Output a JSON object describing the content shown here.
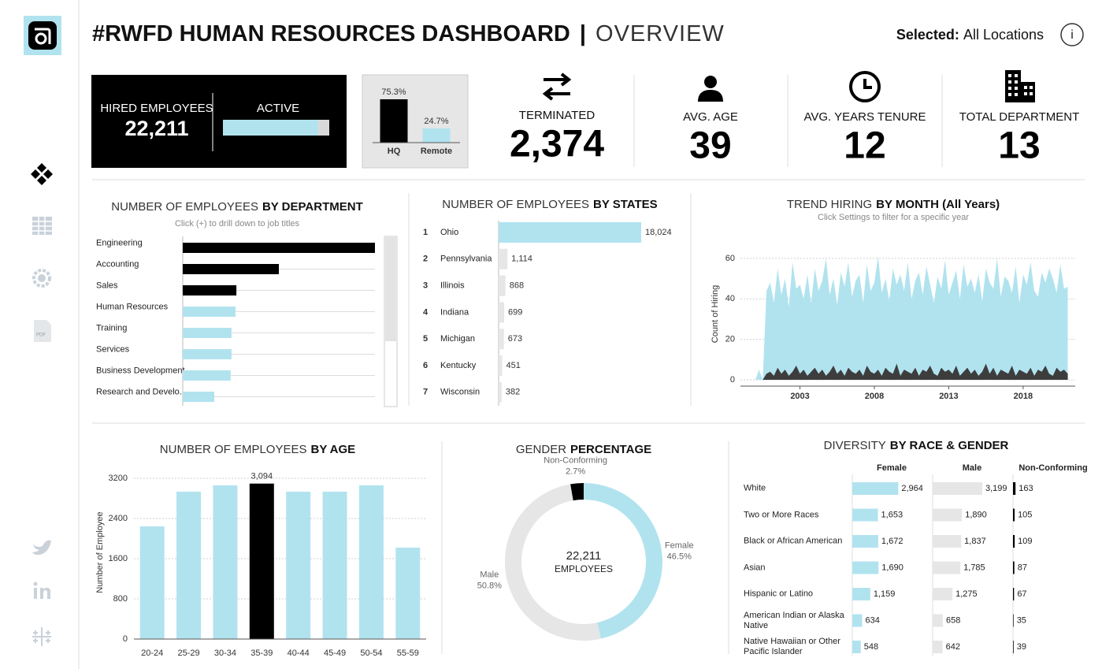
{
  "sidebar": {
    "pdf_icon": "PDF"
  },
  "header": {
    "title": "#RWFD HUMAN RESOURCES DASHBOARD",
    "separator": "|",
    "subtitle": "OVERVIEW",
    "filter_label": "Selected:",
    "filter_value": "All Locations",
    "info": "i"
  },
  "kpis": {
    "hired": {
      "label": "HIRED EMPLOYEES",
      "value": "22,211"
    },
    "active": {
      "label": "ACTIVE",
      "value": 89.3,
      "xlim": [
        0,
        100
      ]
    },
    "terminated": {
      "label": "TERMINATED",
      "value": "2,374"
    },
    "avg_age": {
      "label": "AVG. AGE",
      "value": 39
    },
    "avg_tenure": {
      "label": "AVG. YEARS TENURE",
      "value": 12
    },
    "total_department": {
      "label": "TOTAL DEPARTMENT",
      "value": 13
    }
  },
  "chart_data": [
    {
      "type": "bar",
      "orientation": "vertical",
      "categories": [
        "HQ",
        "Remote"
      ],
      "values": [
        75.3,
        24.7
      ],
      "value_labels": [
        "75.3%",
        "24.7%"
      ],
      "colors": [
        "#000000",
        "#b1e3ef"
      ]
    },
    {
      "type": "bar",
      "orientation": "horizontal",
      "title": "NUMBER OF EMPLOYEES",
      "title_emphasis": "BY DEPARTMENT",
      "subtitle": "Click (+) to drill down to job titles",
      "categories": [
        "Engineering",
        "Accounting",
        "Sales",
        "Human Resources",
        "Training",
        "Services",
        "Business Development",
        "Research and Develo.."
      ],
      "values": [
        6700,
        3350,
        1870,
        1840,
        1700,
        1700,
        1670,
        1100
      ],
      "colors": [
        "#000000",
        "#000000",
        "#000000",
        "#b1e3ef",
        "#b1e3ef",
        "#b1e3ef",
        "#b1e3ef",
        "#b1e3ef"
      ]
    },
    {
      "type": "bar",
      "orientation": "horizontal",
      "title": "NUMBER OF EMPLOYEES",
      "title_emphasis": "BY STATES",
      "ranks": [
        1,
        2,
        3,
        4,
        5,
        6,
        7
      ],
      "categories": [
        "Ohio",
        "Pennsylvania",
        "Illinois",
        "Indiana",
        "Michigan",
        "Kentucky",
        "Wisconsin"
      ],
      "values": [
        18024,
        1114,
        868,
        699,
        673,
        451,
        382
      ],
      "value_labels": [
        "18,024",
        "1,114",
        "868",
        "699",
        "673",
        "451",
        "382"
      ],
      "colors": [
        "#b1e3ef",
        "#e6e6e6",
        "#e6e6e6",
        "#e6e6e6",
        "#e6e6e6",
        "#e6e6e6",
        "#e6e6e6"
      ]
    },
    {
      "type": "area",
      "title": "TREND HIRING",
      "title_emphasis": "BY MONTH (All Years)",
      "subtitle": "Click Settings to filter for a specific year",
      "ylabel": "Count of Hiring",
      "x": [
        2000,
        2000.25,
        2000.5,
        2000.75,
        2001,
        2001.25,
        2001.5,
        2001.75,
        2002,
        2002.25,
        2002.5,
        2002.75,
        2003,
        2003.25,
        2003.5,
        2003.75,
        2004,
        2004.25,
        2004.5,
        2004.75,
        2005,
        2005.25,
        2005.5,
        2005.75,
        2006,
        2006.25,
        2006.5,
        2006.75,
        2007,
        2007.25,
        2007.5,
        2007.75,
        2008,
        2008.25,
        2008.5,
        2008.75,
        2009,
        2009.25,
        2009.5,
        2009.75,
        2010,
        2010.25,
        2010.5,
        2010.75,
        2011,
        2011.25,
        2011.5,
        2011.75,
        2012,
        2012.25,
        2012.5,
        2012.75,
        2013,
        2013.25,
        2013.5,
        2013.75,
        2014,
        2014.25,
        2014.5,
        2014.75,
        2015,
        2015.25,
        2015.5,
        2015.75,
        2016,
        2016.25,
        2016.5,
        2016.75,
        2017,
        2017.25,
        2017.5,
        2017.75,
        2018,
        2018.25,
        2018.5,
        2018.75,
        2019,
        2019.25,
        2019.5,
        2019.75,
        2020,
        2020.25,
        2020.5,
        2020.75,
        2021
      ],
      "series": [
        {
          "color": "#b1e3ef",
          "values": [
            0,
            5,
            0,
            44,
            48,
            38,
            55,
            42,
            50,
            36,
            58,
            45,
            47,
            40,
            52,
            38,
            55,
            44,
            49,
            60,
            42,
            50,
            37,
            53,
            46,
            58,
            41,
            49,
            52,
            38,
            57,
            44,
            48,
            61,
            43,
            50,
            39,
            55,
            47,
            52,
            44,
            58,
            40,
            49,
            53,
            42,
            56,
            47,
            38,
            51,
            45,
            59,
            42,
            48,
            54,
            40,
            57,
            46,
            50,
            43,
            52,
            39,
            55,
            48,
            45,
            60,
            41,
            51,
            49,
            43,
            56,
            38,
            52,
            47,
            58,
            44,
            41,
            53,
            48,
            55,
            50,
            43,
            57,
            45,
            46
          ]
        },
        {
          "color": "#3d3d3d",
          "values": [
            0,
            0,
            0,
            3,
            4,
            2,
            6,
            3,
            5,
            2,
            4,
            7,
            3,
            5,
            2,
            4,
            6,
            3,
            5,
            2,
            4,
            7,
            3,
            5,
            2,
            6,
            4,
            3,
            5,
            2,
            7,
            4,
            3,
            5,
            2,
            6,
            4,
            3,
            8,
            2,
            5,
            4,
            3,
            6,
            2,
            5,
            4,
            7,
            3,
            2,
            6,
            4,
            5,
            3,
            7,
            2,
            4,
            6,
            3,
            5,
            2,
            4,
            8,
            3,
            6,
            2,
            5,
            4,
            3,
            7,
            2,
            5,
            4,
            3,
            6,
            2,
            5,
            4,
            7,
            3,
            2,
            6,
            4,
            5,
            3
          ]
        }
      ],
      "xlim": [
        1999,
        2021.5
      ],
      "xticks": [
        2003,
        2008,
        2013,
        2018
      ],
      "ylim": [
        0,
        65
      ],
      "yticks": [
        0,
        20,
        40,
        60
      ],
      "grid": true
    },
    {
      "type": "bar",
      "orientation": "vertical",
      "title": "NUMBER OF EMPLOYEES",
      "title_emphasis": "BY AGE",
      "ylabel": "Number of Employee",
      "categories": [
        "20-24",
        "25-29",
        "30-34",
        "35-39",
        "40-44",
        "45-49",
        "50-54",
        "55-59"
      ],
      "values": [
        2243,
        2933,
        3059,
        3094,
        2933,
        2933,
        3059,
        1820
      ],
      "value_labels": [
        null,
        null,
        null,
        "3,094",
        null,
        null,
        null,
        null
      ],
      "colors": [
        "#b1e3ef",
        "#b1e3ef",
        "#b1e3ef",
        "#000000",
        "#b1e3ef",
        "#b1e3ef",
        "#b1e3ef",
        "#b1e3ef"
      ],
      "ylim": [
        0,
        3450
      ],
      "yticks": [
        0,
        800,
        1600,
        2400,
        3200
      ],
      "grid": true
    },
    {
      "type": "donut",
      "title": "GENDER",
      "title_emphasis": "PERCENTAGE",
      "categories": [
        "Female",
        "Male",
        "Non-Conforming"
      ],
      "values": [
        46.5,
        50.8,
        2.7
      ],
      "value_labels": [
        "46.5%",
        "50.8%",
        "2.7%"
      ],
      "colors": [
        "#b1e3ef",
        "#e6e6e6",
        "#000000"
      ],
      "center_value": "22,211",
      "center_label": "EMPLOYEES"
    },
    {
      "type": "bar",
      "orientation": "horizontal",
      "title": "DIVERSITY",
      "title_emphasis": "BY RACE & GENDER",
      "categories": [
        "White",
        "Two or More Races",
        "Black or African American",
        "Asian",
        "Hispanic or Latino",
        "American Indian or Alaska Native",
        "Native Hawaiian or Other Pacific Islander"
      ],
      "series": [
        {
          "name": "Female",
          "color": "#b1e3ef",
          "values": [
            2964,
            1653,
            1672,
            1690,
            1159,
            634,
            548
          ],
          "value_labels": [
            "2,964",
            "1,653",
            "1,672",
            "1,690",
            "1,159",
            "634",
            "548"
          ]
        },
        {
          "name": "Male",
          "color": "#e6e6e6",
          "values": [
            3199,
            1890,
            1837,
            1785,
            1275,
            658,
            642
          ],
          "value_labels": [
            "3,199",
            "1,890",
            "1,837",
            "1,785",
            "1,275",
            "658",
            "642"
          ]
        },
        {
          "name": "Non-Conforming",
          "color": "#000000",
          "values": [
            163,
            105,
            109,
            87,
            67,
            35,
            39
          ]
        }
      ]
    }
  ]
}
